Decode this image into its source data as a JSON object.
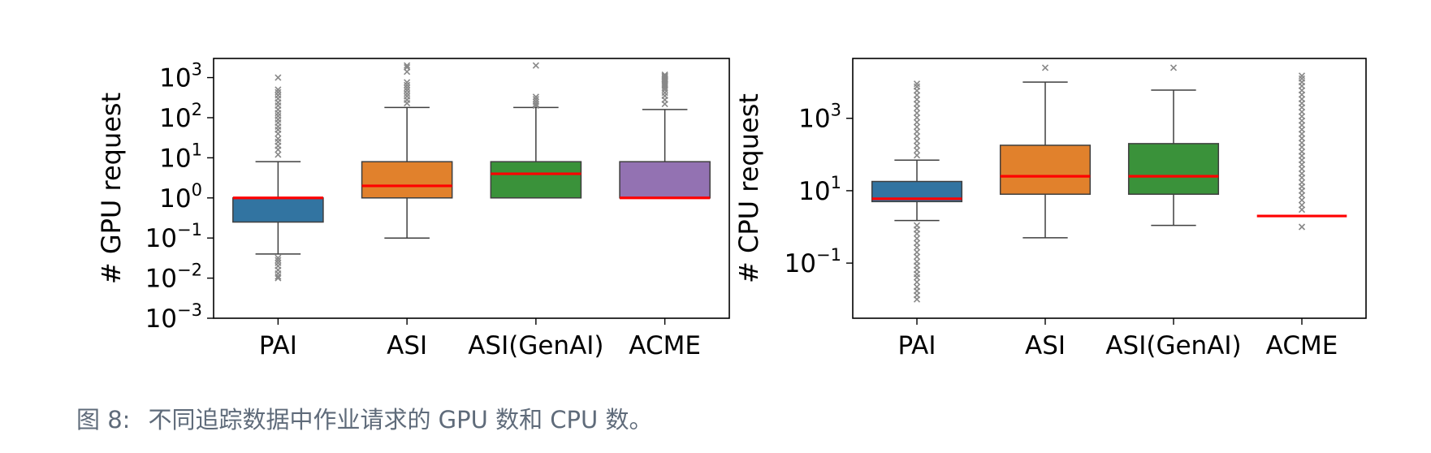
{
  "chart_data": [
    {
      "type": "box",
      "title": "",
      "xlabel": "",
      "ylabel": "# GPU request",
      "yscale": "log",
      "ylim": [
        0.001,
        3000
      ],
      "yticks": [
        0.001,
        0.01,
        0.1,
        1,
        10,
        100,
        1000
      ],
      "ytick_labels": [
        {
          "base": "10",
          "exp": "−3"
        },
        {
          "base": "10",
          "exp": "−2"
        },
        {
          "base": "10",
          "exp": "−1"
        },
        {
          "base": "10",
          "exp": "0"
        },
        {
          "base": "10",
          "exp": "1"
        },
        {
          "base": "10",
          "exp": "2"
        },
        {
          "base": "10",
          "exp": "3"
        }
      ],
      "grid": false,
      "categories": [
        "PAI",
        "ASI",
        "ASI(GenAI)",
        "ACME"
      ],
      "boxes": [
        {
          "category": "PAI",
          "color": "#3274a1",
          "q1": 0.25,
          "median": 1,
          "q3": 1,
          "whisker_low": 0.04,
          "whisker_high": 8,
          "outliers": [
            0.01,
            0.011,
            0.013,
            0.016,
            0.02,
            0.024,
            0.028,
            0.032,
            12,
            16,
            20,
            25,
            30,
            40,
            50,
            60,
            75,
            90,
            110,
            130,
            160,
            200,
            240,
            300,
            360,
            430,
            500,
            1000
          ]
        },
        {
          "category": "ASI",
          "color": "#e1812c",
          "q1": 1,
          "median": 2,
          "q3": 8,
          "whisker_low": 0.1,
          "whisker_high": 180,
          "outliers": [
            230,
            280,
            340,
            400,
            480,
            560,
            650,
            760,
            1400,
            1800,
            2000
          ]
        },
        {
          "category": "ASI(GenAI)",
          "color": "#3a923a",
          "q1": 1,
          "median": 4,
          "q3": 8,
          "whisker_low": 1,
          "whisker_high": 180,
          "outliers": [
            200,
            220,
            250,
            290,
            330,
            2000
          ]
        },
        {
          "category": "ACME",
          "color": "#9372b2",
          "q1": 1,
          "median": 1,
          "q3": 8,
          "whisker_low": 1,
          "whisker_high": 160,
          "outliers": [
            220,
            280,
            350,
            420,
            500,
            560,
            620,
            680,
            740,
            800,
            860,
            920,
            980,
            1040,
            1100,
            1180
          ]
        }
      ]
    },
    {
      "type": "box",
      "title": "",
      "xlabel": "",
      "ylabel": "# CPU request",
      "yscale": "log",
      "ylim": [
        0.003,
        45000
      ],
      "yticks": [
        0.1,
        10,
        1000
      ],
      "ytick_labels": [
        {
          "base": "10",
          "exp": "−1"
        },
        {
          "base": "10",
          "exp": "1"
        },
        {
          "base": "10",
          "exp": "3"
        }
      ],
      "grid": false,
      "categories": [
        "PAI",
        "ASI",
        "ASI(GenAI)",
        "ACME"
      ],
      "boxes": [
        {
          "category": "PAI",
          "color": "#3274a1",
          "q1": 5,
          "median": 6,
          "q3": 18,
          "whisker_low": 1.5,
          "whisker_high": 70,
          "outliers": [
            0.01,
            0.013,
            0.017,
            0.022,
            0.03,
            0.04,
            0.05,
            0.065,
            0.085,
            0.11,
            0.15,
            0.2,
            0.27,
            0.36,
            0.48,
            0.65,
            0.85,
            1.1,
            95,
            130,
            175,
            235,
            320,
            430,
            580,
            780,
            1050,
            1400,
            1900,
            2500,
            3300,
            4400,
            5800,
            7500,
            9000
          ]
        },
        {
          "category": "ASI",
          "color": "#e1812c",
          "q1": 8,
          "median": 25,
          "q3": 180,
          "whisker_low": 0.5,
          "whisker_high": 10000,
          "outliers": [
            25000
          ]
        },
        {
          "category": "ASI(GenAI)",
          "color": "#3a923a",
          "q1": 8,
          "median": 25,
          "q3": 200,
          "whisker_low": 1.1,
          "whisker_high": 6000,
          "outliers": [
            25000
          ]
        },
        {
          "category": "ACME",
          "color": "#9372b2",
          "q1": 2,
          "median": 2,
          "q3": 2,
          "whisker_low": 2,
          "whisker_high": 2,
          "outliers": [
            1,
            3,
            4,
            5.5,
            7.5,
            10,
            13,
            17,
            23,
            30,
            40,
            53,
            70,
            92,
            120,
            160,
            210,
            280,
            370,
            490,
            650,
            860,
            1130,
            1500,
            2000,
            2600,
            3400,
            4500,
            5900,
            7800,
            10000,
            12500,
            15000
          ]
        }
      ]
    }
  ],
  "caption": {
    "label": "图 8:",
    "text": "不同追踪数据中作业请求的 GPU 数和 CPU 数。"
  }
}
